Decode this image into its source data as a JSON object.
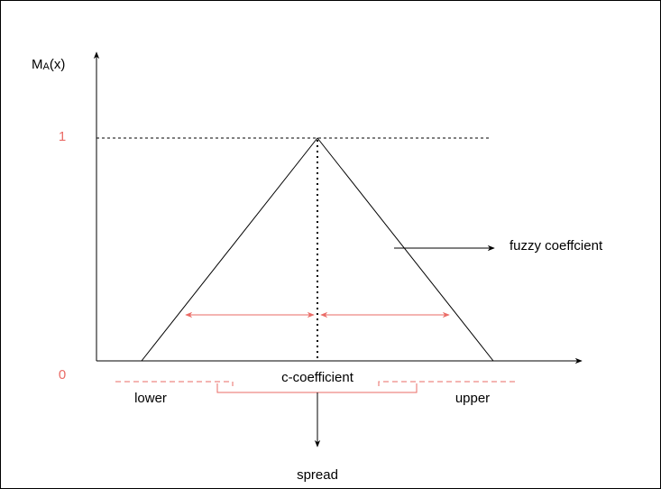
{
  "axis_label": {
    "main": "M",
    "sub": "A",
    "arg": "(x)"
  },
  "y_ticks": {
    "top": "1",
    "bottom": "0"
  },
  "labels": {
    "fuzzy": "fuzzy coeffcient",
    "center": "c-coefficient",
    "lower": "lower",
    "upper": "upper",
    "spread": "spread"
  }
}
